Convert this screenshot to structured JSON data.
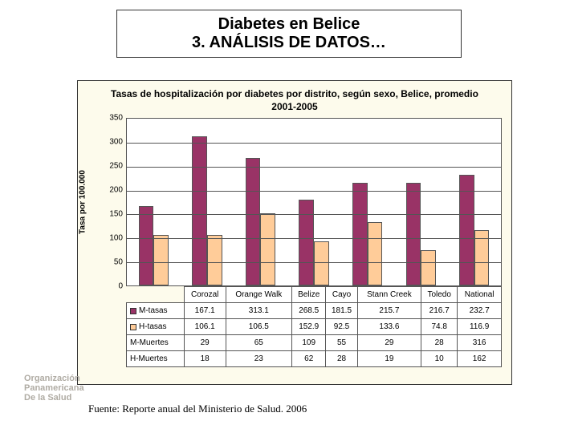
{
  "title": {
    "line1": "Diabetes en Belice",
    "line2": "3. ANÁLISIS DE DATOS…"
  },
  "chart": {
    "type": "bar",
    "caption": "Tasas de hospitalización por diabetes por distrito, según sexo, Belice, promedio 2001-2005",
    "ylabel": "Tasa por 100.000",
    "ylim": [
      0,
      350
    ],
    "ytick_step": 50,
    "background_color": "#fdfbec",
    "plot_bg": "#ffffff",
    "grid_color": "#555555",
    "bar_width_pct": 28,
    "categories": [
      "Corozal",
      "Orange Walk",
      "Belize",
      "Cayo",
      "Stann Creek",
      "Toledo",
      "National"
    ],
    "series": [
      {
        "key": "m_tasas",
        "label": "M-tasas",
        "color": "#993366",
        "swatch": true,
        "values": [
          167.1,
          313.1,
          268.5,
          181.5,
          215.7,
          216.7,
          232.7
        ]
      },
      {
        "key": "h_tasas",
        "label": "H-tasas",
        "color": "#ffcc99",
        "swatch": true,
        "values": [
          106.1,
          106.5,
          152.9,
          92.5,
          133.6,
          74.8,
          116.9
        ]
      },
      {
        "key": "m_muertes",
        "label": "M-Muertes",
        "swatch": false,
        "values": [
          29,
          65,
          109,
          55,
          29,
          28,
          316
        ]
      },
      {
        "key": "h_muertes",
        "label": "H-Muertes",
        "swatch": false,
        "values": [
          18,
          23,
          62,
          28,
          19,
          10,
          162
        ]
      }
    ]
  },
  "org": {
    "line1": "Organización",
    "line2": "Panamericana",
    "line3": "De la Salud"
  },
  "source": "Fuente: Reporte anual del Ministerio de Salud. 2006"
}
